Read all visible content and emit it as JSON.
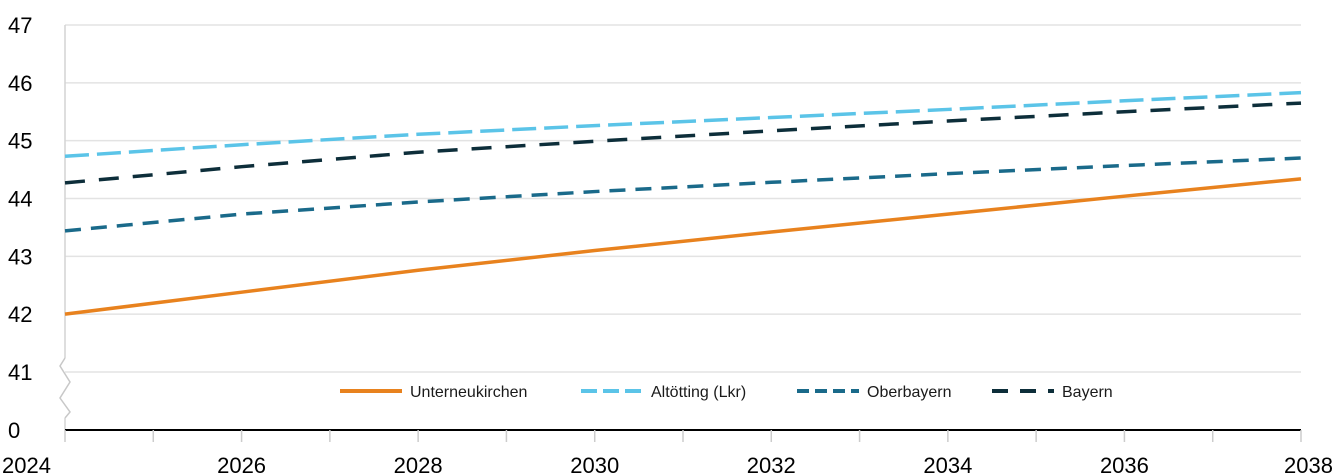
{
  "chart_data": {
    "type": "line",
    "x": [
      2024,
      2026,
      2028,
      2030,
      2032,
      2034,
      2036,
      2038
    ],
    "x_tick_labels": [
      "2024",
      "2026",
      "2028",
      "2030",
      "2032",
      "2034",
      "2036",
      "2038"
    ],
    "y_tick_labels": [
      "0",
      "41",
      "42",
      "43",
      "44",
      "45",
      "46",
      "47"
    ],
    "ylim": [
      41,
      47
    ],
    "y_axis_break": "between 0 and 41",
    "grid": true,
    "legend_position": "bottom-center",
    "series": [
      {
        "name": "Unterneukirchen",
        "style": "solid",
        "color": "#E8821E",
        "values": [
          42.0,
          42.38,
          42.76,
          43.1,
          43.42,
          43.73,
          44.04,
          44.34
        ]
      },
      {
        "name": "Altötting (Lkr)",
        "style": "dashed",
        "color": "#5BC4E8",
        "values": [
          44.73,
          44.93,
          45.11,
          45.26,
          45.4,
          45.54,
          45.69,
          45.83
        ]
      },
      {
        "name": "Oberbayern",
        "style": "dashed",
        "color": "#1A6A8A",
        "values": [
          43.44,
          43.73,
          43.94,
          44.12,
          44.28,
          44.43,
          44.57,
          44.7
        ]
      },
      {
        "name": "Bayern",
        "style": "dashed",
        "color": "#0D2E3A",
        "values": [
          44.27,
          44.55,
          44.8,
          44.99,
          45.17,
          45.34,
          45.5,
          45.65
        ]
      }
    ]
  }
}
